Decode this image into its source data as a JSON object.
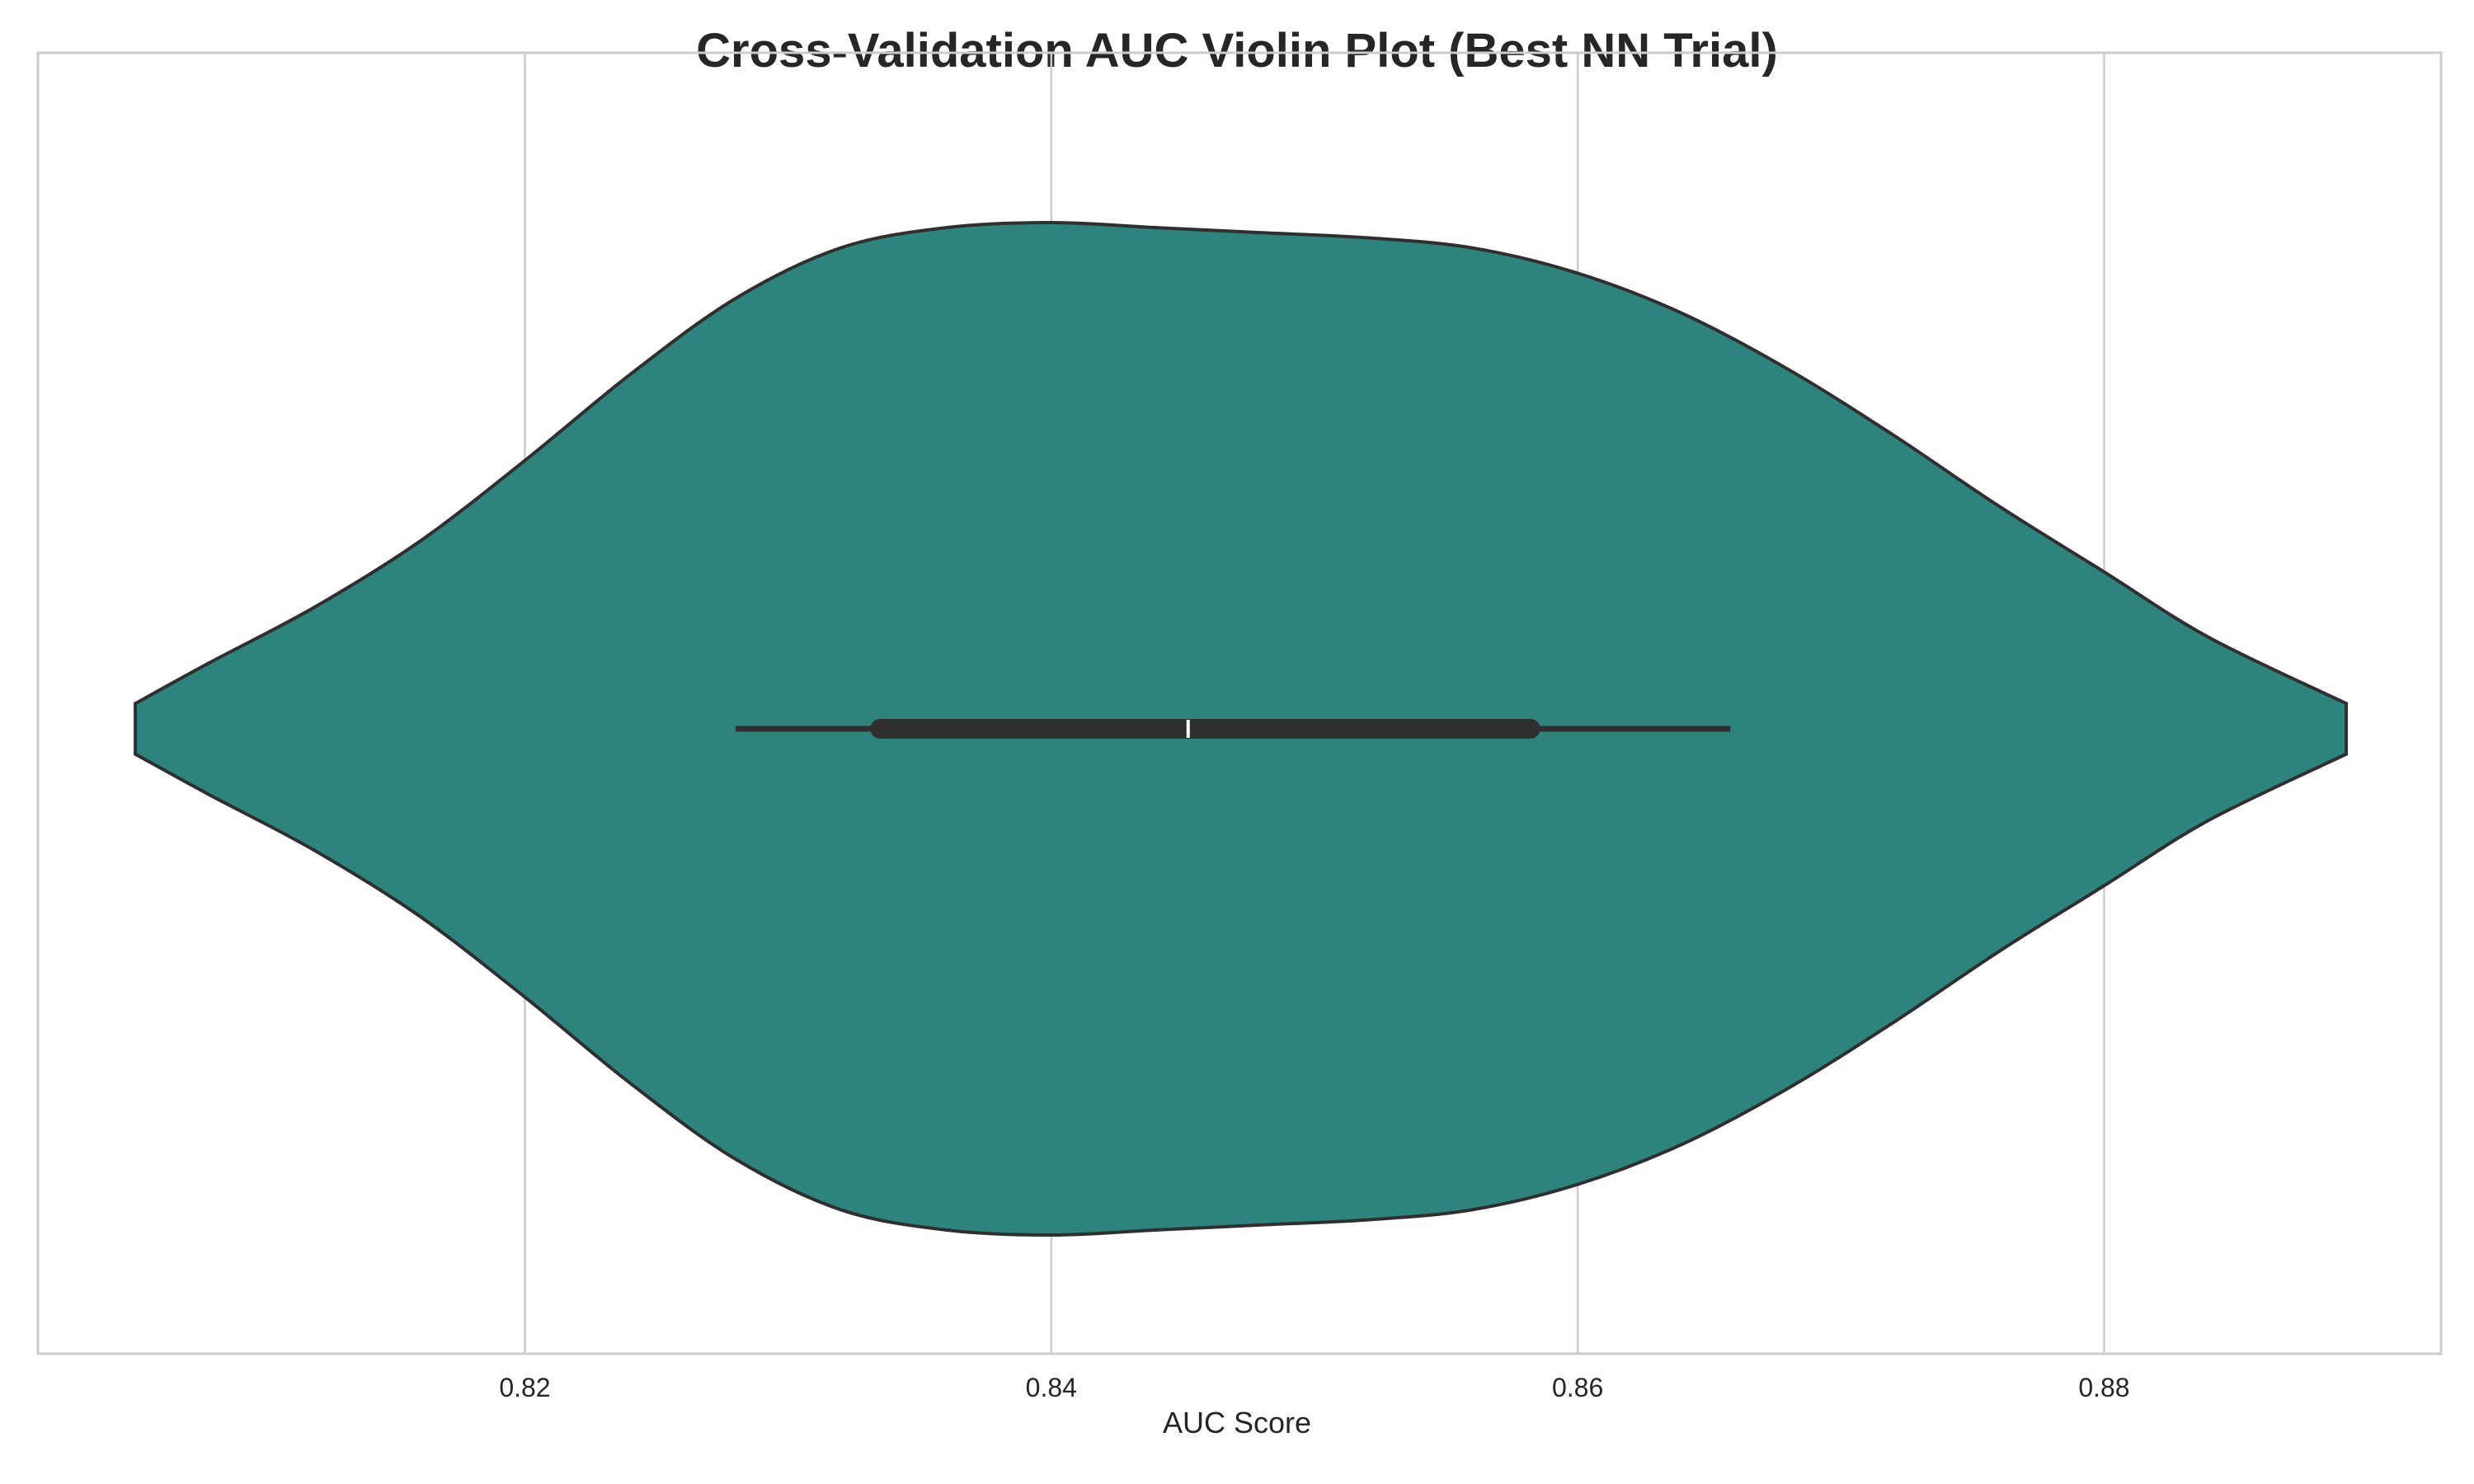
{
  "chart_data": {
    "type": "violin",
    "title": "Cross-Validation AUC Violin Plot (Best NN Trial)",
    "xlabel": "AUC Score",
    "ylabel": "",
    "xlim": [
      0.8015,
      0.8928
    ],
    "xticks": [
      0.82,
      0.84,
      0.86,
      0.88
    ],
    "xtick_labels": [
      "0.82",
      "0.84",
      "0.86",
      "0.88"
    ],
    "grid": true,
    "fill_color": "#2e837f",
    "edge_color": "#2f2f2f",
    "density_profile": {
      "x": [
        0.8052,
        0.808,
        0.812,
        0.816,
        0.82,
        0.824,
        0.828,
        0.832,
        0.836,
        0.84,
        0.844,
        0.848,
        0.852,
        0.856,
        0.86,
        0.864,
        0.868,
        0.872,
        0.876,
        0.88,
        0.884,
        0.8892
      ],
      "half_width": [
        0.05,
        0.13,
        0.24,
        0.37,
        0.53,
        0.7,
        0.85,
        0.95,
        0.99,
        1.0,
        0.99,
        0.98,
        0.97,
        0.95,
        0.9,
        0.82,
        0.71,
        0.58,
        0.44,
        0.31,
        0.18,
        0.05
      ]
    },
    "box": {
      "whisker_low": 0.828,
      "q1": 0.8335,
      "median": 0.8452,
      "q3": 0.8582,
      "whisker_high": 0.8658
    }
  }
}
